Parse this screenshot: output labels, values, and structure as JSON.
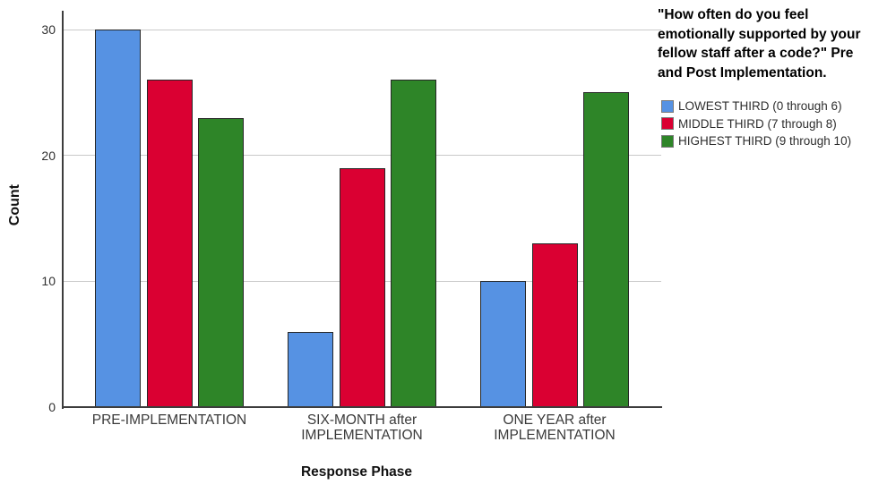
{
  "chart_data": {
    "type": "bar",
    "title": "\"How often do you feel\nemotionally supported by your\nfellow staff after a code?\" Pre\nand Post Implementation.",
    "xlabel": "Response Phase",
    "ylabel": "Count",
    "categories": [
      "PRE-IMPLEMENTATION",
      "SIX-MONTH after\nIMPLEMENTATION",
      "ONE YEAR after\nIMPLEMENTATION"
    ],
    "series": [
      {
        "name": "LOWEST THIRD (0 through 6)",
        "color": "#5692E3",
        "values": [
          30,
          6,
          10
        ]
      },
      {
        "name": "MIDDLE THIRD (7 through 8)",
        "color": "#DA0032",
        "values": [
          26,
          19,
          13
        ]
      },
      {
        "name": "HIGHEST THIRD (9 through 10)",
        "color": "#2E8528",
        "values": [
          23,
          26,
          25
        ]
      }
    ],
    "ylim": [
      0,
      31.5
    ],
    "yticks": [
      0,
      10,
      20,
      30
    ],
    "grid": true,
    "legend_position": "right"
  }
}
